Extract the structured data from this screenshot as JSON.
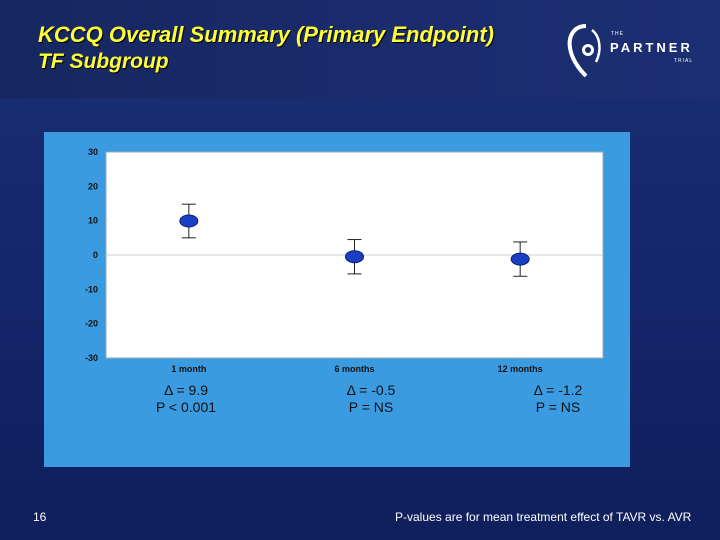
{
  "slide": {
    "title": "KCCQ Overall Summary (Primary Endpoint)",
    "subtitle": "TF Subgroup",
    "page_number": "16",
    "footnote": "P-values are for mean treatment effect of TAVR vs. AVR",
    "logo": {
      "the": "THE",
      "word": "PARTNER",
      "trial": "TRIAL"
    }
  },
  "annotations": [
    {
      "delta": "Δ = 9.9",
      "p": "P < 0.001"
    },
    {
      "delta": "Δ = -0.5",
      "p": "P = NS"
    },
    {
      "delta": "Δ = -1.2",
      "p": "P = NS"
    }
  ],
  "colors": {
    "panel": "#3a9be0",
    "plot": "#ffffff",
    "marker": "#1a3fc4",
    "title": "#ffff33"
  },
  "chart_data": {
    "type": "scatter",
    "title": "",
    "xlabel": "",
    "ylabel": "",
    "categories": [
      "1 month",
      "6 months",
      "12 months"
    ],
    "series": [
      {
        "values": [
          9.9,
          -0.5,
          -1.2
        ],
        "error_low": [
          5,
          -5.5,
          -6.2
        ],
        "error_high": [
          14.8,
          4.5,
          3.8
        ]
      }
    ],
    "ylim": [
      -30,
      30
    ],
    "yticks": [
      30,
      20,
      10,
      0,
      -10,
      -20,
      -30
    ],
    "grid": false,
    "legend": "none"
  }
}
